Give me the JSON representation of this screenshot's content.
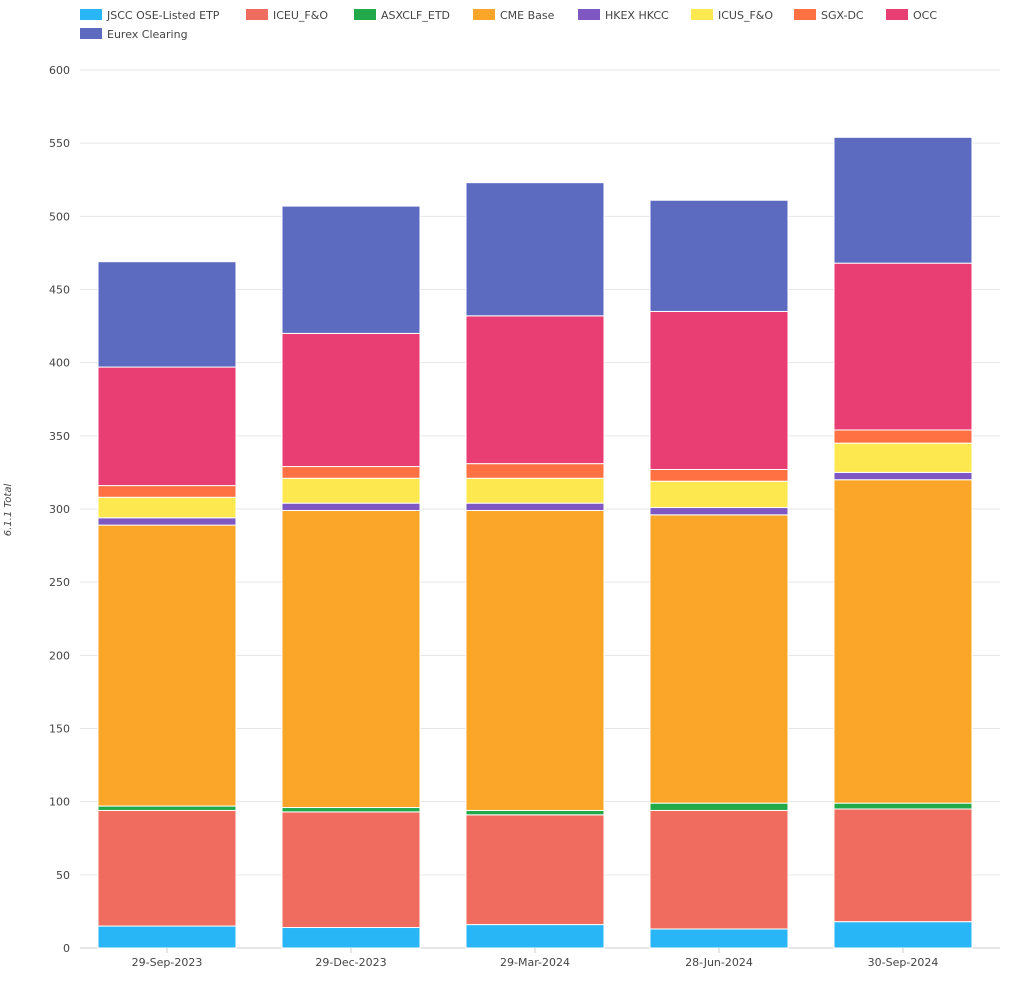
{
  "chart_data": {
    "type": "bar",
    "stacked": true,
    "categories": [
      "29-Sep-2023",
      "29-Dec-2023",
      "29-Mar-2024",
      "28-Jun-2024",
      "30-Sep-2024"
    ],
    "ylabel": "6.1.1 Total",
    "xlabel": "",
    "ylim": [
      0,
      600
    ],
    "yticks": [
      0,
      50,
      100,
      150,
      200,
      250,
      300,
      350,
      400,
      450,
      500,
      550,
      600
    ],
    "grid": true,
    "legend_position": "top",
    "series": [
      {
        "name": "JSCC OSE-Listed ETP",
        "color": "#29b6f6",
        "values": [
          15,
          14,
          16,
          13,
          18
        ]
      },
      {
        "name": "ICEU_F&O",
        "color": "#ef6c5e",
        "values": [
          79,
          79,
          75,
          81,
          77
        ]
      },
      {
        "name": "ASXCLF_ETD",
        "color": "#22a94a",
        "values": [
          3,
          3,
          3,
          5,
          4
        ]
      },
      {
        "name": "CME Base",
        "color": "#fba628",
        "values": [
          192,
          203,
          205,
          197,
          221
        ]
      },
      {
        "name": "HKEX HKCC",
        "color": "#7e57c2",
        "values": [
          5,
          5,
          5,
          5,
          5
        ]
      },
      {
        "name": "ICUS_F&O",
        "color": "#fde84f",
        "values": [
          14,
          17,
          17,
          18,
          20
        ]
      },
      {
        "name": "SGX-DC",
        "color": "#ff7043",
        "values": [
          8,
          8,
          10,
          8,
          9
        ]
      },
      {
        "name": "OCC",
        "color": "#e83e74",
        "values": [
          81,
          91,
          101,
          108,
          114
        ]
      },
      {
        "name": "Eurex Clearing",
        "color": "#5c6bc0",
        "values": [
          72,
          87,
          91,
          76,
          86
        ]
      }
    ]
  }
}
